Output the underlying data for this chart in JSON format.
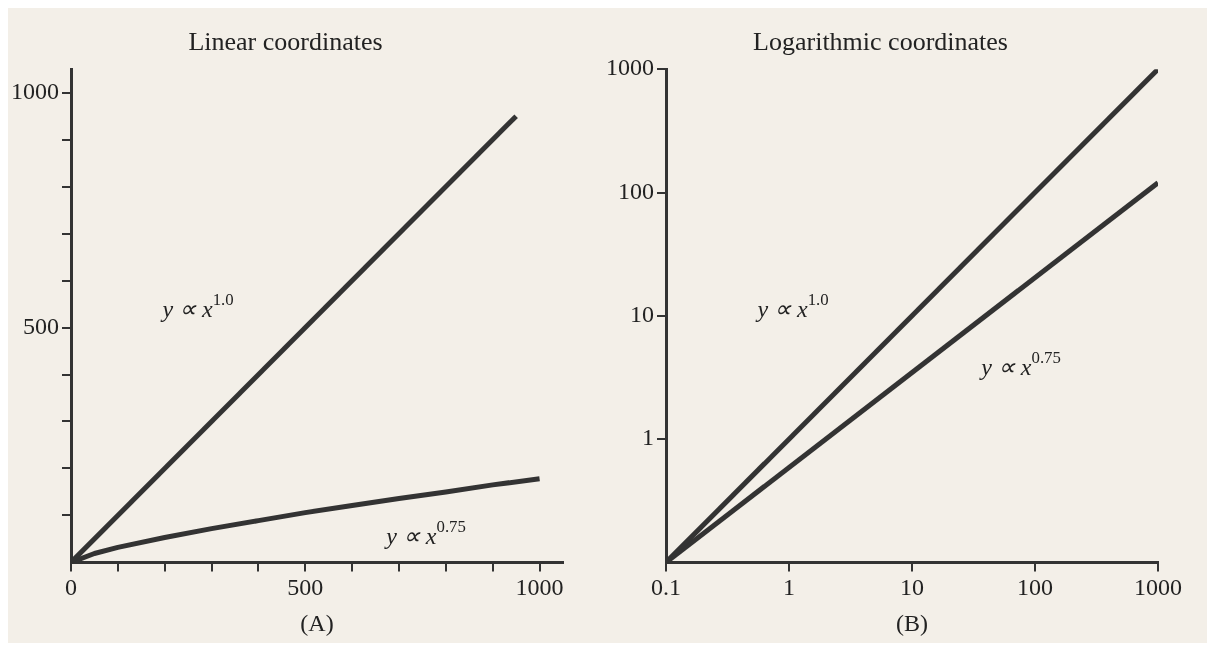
{
  "chart_data": [
    {
      "type": "line",
      "title": "Linear coordinates",
      "xlabel": "(A)",
      "xlim": [
        0,
        1050
      ],
      "ylim": [
        0,
        1050
      ],
      "xticks": [
        0,
        {
          "value": 100,
          "label": null
        },
        {
          "value": 200,
          "label": null
        },
        {
          "value": 300,
          "label": null
        },
        {
          "value": 400,
          "label": null
        },
        500,
        {
          "value": 600,
          "label": null
        },
        {
          "value": 700,
          "label": null
        },
        {
          "value": 800,
          "label": null
        },
        {
          "value": 900,
          "label": null
        },
        1000
      ],
      "yticks": [
        {
          "value": 100,
          "label": null
        },
        {
          "value": 200,
          "label": null
        },
        {
          "value": 300,
          "label": null
        },
        {
          "value": 400,
          "label": null
        },
        500,
        {
          "value": 600,
          "label": null
        },
        {
          "value": 700,
          "label": null
        },
        {
          "value": 800,
          "label": null
        },
        {
          "value": 900,
          "label": null
        },
        1000
      ],
      "series": [
        {
          "name": "y ∝ x$^{1.0}$",
          "color": "#333333",
          "x": [
            0,
            950
          ],
          "values": [
            0,
            950
          ]
        },
        {
          "name": "y ∝ x$^{0.75}$",
          "color": "#333333",
          "x": [
            0,
            50,
            100,
            200,
            300,
            400,
            500,
            600,
            700,
            800,
            900,
            1000
          ],
          "values": [
            0,
            19,
            32,
            53,
            72,
            89,
            106,
            121,
            136,
            150,
            165,
            178
          ]
        }
      ],
      "legend": false,
      "grid": false
    },
    {
      "type": "line",
      "title": "Logarithmic coordinates",
      "xlabel": "(B)",
      "log": "xy",
      "xlim": [
        0.1,
        1000
      ],
      "ylim": [
        0.1,
        1000
      ],
      "xticks": [
        0.1,
        1,
        10,
        100,
        1000
      ],
      "yticks": [
        1,
        10,
        100,
        1000
      ],
      "series": [
        {
          "name": "y ∝ x$^{1.0}$",
          "color": "#333333",
          "x": [
            0.1,
            1000
          ],
          "values": [
            0.1,
            1000
          ]
        },
        {
          "name": "y ∝ x$^{0.75}$",
          "color": "#333333",
          "x": [
            0.1,
            1000
          ],
          "values": [
            0.1,
            120
          ]
        }
      ],
      "legend": false,
      "grid": false
    }
  ]
}
